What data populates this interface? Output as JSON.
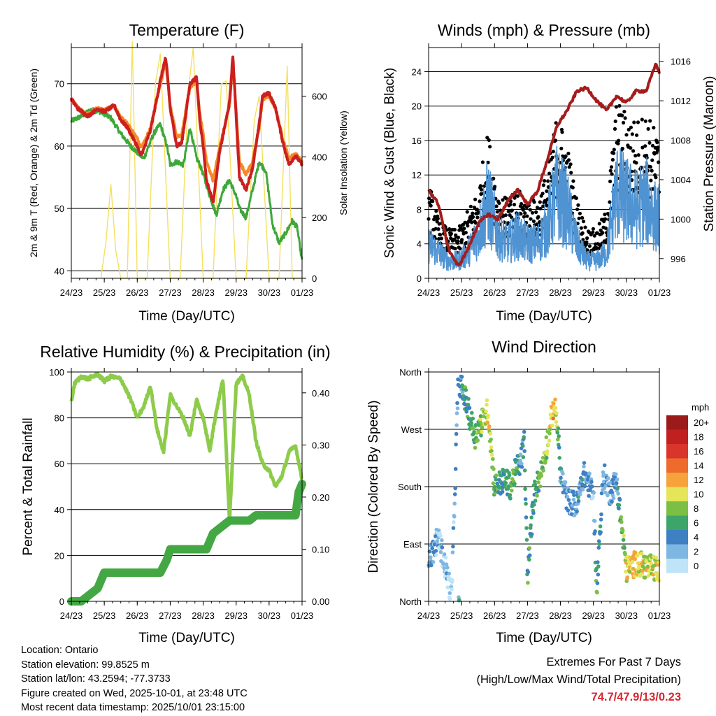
{
  "chart_data": [
    {
      "type": "line",
      "title": "Temperature (F)",
      "xlabel": "Time (Day/UTC)",
      "ylabel": "2m & 9m T (Red, Orange) & 2m Td (Green)",
      "y2label": "Solar Insolation (Yellow)",
      "x_ticks": [
        "24/23",
        "25/23",
        "26/23",
        "27/23",
        "28/23",
        "29/23",
        "30/23",
        "01/23"
      ],
      "ylim": [
        38.8,
        75.8
      ],
      "y_ticks": [
        "40",
        "50",
        "60",
        "70"
      ],
      "y2lim": [
        0,
        760
      ],
      "y2_ticks": [
        "0",
        "200",
        "400",
        "600"
      ],
      "colors": {
        "t2m": "#cc1f1f",
        "t9m": "#f58a2a",
        "td": "#3ea83a",
        "solar": "#f5e05e"
      },
      "series": [
        {
          "name": "2m T",
          "axis": "left",
          "x": [
            0,
            0.2,
            0.5,
            0.8,
            1.0,
            1.3,
            1.5,
            1.7,
            1.9,
            2.0,
            2.1,
            2.2,
            2.4,
            2.7,
            2.85,
            2.9,
            3.0,
            3.2,
            3.35,
            3.6,
            3.8,
            3.9,
            4.0,
            4.1,
            4.3,
            4.5,
            4.8,
            4.9,
            5.0,
            5.1,
            5.3,
            5.5,
            5.7,
            5.8,
            6.0,
            6.2,
            6.4,
            6.6,
            6.8,
            7.0
          ],
          "values": [
            67.5,
            66.0,
            64.8,
            66.0,
            65.5,
            66.5,
            64.2,
            63.0,
            61.0,
            60.0,
            58.5,
            59.5,
            62.5,
            70.5,
            74.0,
            72.5,
            66.0,
            60.0,
            60.5,
            70.0,
            71.0,
            64.0,
            60.0,
            54.5,
            51.0,
            59.0,
            67.0,
            74.5,
            65.0,
            55.0,
            53.0,
            56.5,
            63.5,
            68.0,
            68.5,
            66.0,
            61.0,
            57.0,
            58.5,
            57.0
          ]
        },
        {
          "name": "9m T",
          "axis": "left",
          "x": [
            0,
            0.2,
            0.5,
            0.8,
            1.0,
            1.3,
            1.5,
            1.7,
            1.9,
            2.0,
            2.1,
            2.2,
            2.4,
            2.7,
            2.85,
            2.9,
            3.0,
            3.2,
            3.35,
            3.6,
            3.8,
            3.9,
            4.0,
            4.1,
            4.3,
            4.5,
            4.8,
            4.9,
            5.0,
            5.1,
            5.3,
            5.5,
            5.7,
            5.8,
            6.0,
            6.2,
            6.4,
            6.6,
            6.8,
            7.0
          ],
          "values": [
            67.6,
            66.1,
            65.0,
            66.1,
            65.7,
            66.6,
            64.6,
            63.6,
            62.0,
            61.2,
            60.0,
            60.5,
            62.8,
            70.0,
            73.0,
            71.8,
            66.5,
            61.5,
            61.8,
            69.5,
            70.2,
            65.0,
            62.0,
            57.5,
            54.5,
            59.8,
            66.5,
            73.5,
            65.5,
            57.5,
            55.5,
            57.5,
            63.0,
            67.5,
            68.0,
            66.0,
            61.5,
            58.0,
            58.8,
            57.5
          ]
        },
        {
          "name": "2m Td",
          "axis": "left",
          "x": [
            0,
            0.3,
            0.6,
            0.9,
            1.2,
            1.5,
            1.8,
            2.0,
            2.2,
            2.5,
            2.7,
            2.9,
            3.0,
            3.2,
            3.4,
            3.6,
            3.8,
            3.9,
            4.0,
            4.2,
            4.4,
            4.6,
            4.8,
            5.0,
            5.1,
            5.3,
            5.5,
            5.7,
            5.9,
            6.0,
            6.1,
            6.3,
            6.5,
            6.7,
            6.85,
            7.0
          ],
          "values": [
            64.0,
            64.8,
            65.8,
            65.5,
            64.5,
            62.0,
            60.0,
            59.0,
            58.0,
            62.0,
            63.5,
            60.0,
            57.0,
            57.5,
            57.0,
            63.0,
            58.0,
            57.0,
            55.5,
            52.0,
            49.0,
            53.0,
            54.5,
            52.0,
            50.0,
            48.5,
            53.0,
            57.5,
            56.0,
            52.0,
            47.5,
            44.5,
            46.0,
            48.0,
            47.0,
            41.5
          ]
        },
        {
          "name": "Solar Insolation",
          "axis": "right",
          "x": [
            0.9,
            1.05,
            1.2,
            1.35,
            1.5,
            1.7,
            1.85,
            2.0,
            2.3,
            2.55,
            2.7,
            3.0,
            3.3,
            3.55,
            3.7,
            4.0,
            4.3,
            4.55,
            4.7,
            5.0,
            5.3,
            5.55,
            5.7,
            6.0,
            6.3,
            6.55,
            6.7,
            7.0
          ],
          "values": [
            0,
            120,
            310,
            90,
            0,
            0,
            780,
            0,
            0,
            640,
            740,
            0,
            0,
            620,
            760,
            0,
            0,
            640,
            650,
            0,
            0,
            520,
            600,
            0,
            0,
            700,
            0,
            0
          ]
        }
      ]
    },
    {
      "type": "scatter",
      "title": "Winds (mph) & Pressure (mb)",
      "xlabel": "Time (Day/UTC)",
      "ylabel": "Sonic Wind & Gust (Blue, Black)",
      "y2label": "Station Pressure (Maroon)",
      "x_ticks": [
        "24/23",
        "25/23",
        "26/23",
        "27/23",
        "28/23",
        "29/23",
        "30/23",
        "01/23"
      ],
      "ylim": [
        0,
        26.8
      ],
      "y_ticks": [
        "0",
        "4",
        "8",
        "12",
        "16",
        "20",
        "24"
      ],
      "y2lim": [
        994.0,
        1017.4
      ],
      "y2_ticks": [
        "996",
        "1000",
        "1004",
        "1008",
        "1012",
        "1016"
      ],
      "colors": {
        "wind": "#4f93d2",
        "gust": "#000000",
        "pressure": "#a51c1c"
      },
      "series": [
        {
          "name": "Sonic Wind",
          "axis": "left",
          "x": [
            0,
            0.3,
            0.6,
            0.9,
            1.2,
            1.5,
            1.8,
            2.1,
            2.4,
            2.7,
            3.0,
            3.3,
            3.6,
            3.9,
            4.2,
            4.5,
            4.8,
            5.1,
            5.4,
            5.7,
            6.0,
            6.3,
            6.6,
            6.9,
            7.0
          ],
          "values": [
            4,
            3,
            2,
            2,
            3,
            5,
            9,
            5,
            4,
            5,
            4,
            4,
            6,
            10,
            8,
            4,
            2,
            2,
            3,
            10,
            9,
            8,
            9,
            7,
            7
          ]
        },
        {
          "name": "Gust",
          "axis": "left",
          "x": [
            0,
            0.3,
            0.6,
            0.9,
            1.2,
            1.5,
            1.8,
            2.1,
            2.4,
            2.7,
            3.0,
            3.3,
            3.6,
            3.9,
            4.2,
            4.5,
            4.8,
            5.1,
            5.4,
            5.7,
            6.0,
            6.3,
            6.6,
            6.9,
            7.0
          ],
          "values": [
            10,
            6,
            5,
            5,
            7,
            9,
            15,
            9,
            8,
            9,
            8,
            8,
            11,
            17,
            14,
            8,
            5,
            5,
            7,
            18,
            17,
            16,
            17,
            15,
            14
          ]
        },
        {
          "name": "Station Pressure",
          "axis": "right",
          "x": [
            0,
            0.3,
            0.6,
            0.9,
            1.2,
            1.5,
            1.8,
            2.1,
            2.4,
            2.7,
            3.0,
            3.3,
            3.6,
            3.9,
            4.2,
            4.5,
            4.8,
            5.1,
            5.4,
            5.7,
            6.0,
            6.3,
            6.6,
            6.9,
            7.0
          ],
          "values": [
            1003.0,
            1001.5,
            997.0,
            995.2,
            997.0,
            999.5,
            1000.5,
            1000.0,
            1001.8,
            1003.0,
            1001.5,
            1002.8,
            1006.0,
            1009.5,
            1011.0,
            1013.0,
            1013.3,
            1012.0,
            1011.0,
            1012.5,
            1011.8,
            1013.0,
            1013.0,
            1015.8,
            1014.8
          ]
        }
      ]
    },
    {
      "type": "line",
      "title": "Relative Humidity (%) & Precipitation (in)",
      "xlabel": "Time (Day/UTC)",
      "ylabel": "Percent & Total Rainfall",
      "x_ticks": [
        "24/23",
        "25/23",
        "26/23",
        "27/23",
        "28/23",
        "29/23",
        "30/23",
        "01/23"
      ],
      "ylim": [
        0,
        100
      ],
      "y_ticks": [
        "0",
        "20",
        "40",
        "60",
        "80",
        "100"
      ],
      "y2lim": [
        0,
        0.44
      ],
      "y2_ticks": [
        "0.00",
        "0.10",
        "0.20",
        "0.30",
        "0.40"
      ],
      "colors": {
        "rh": "#8dcb4a",
        "precip": "#43a844"
      },
      "series": [
        {
          "name": "Relative Humidity",
          "axis": "left",
          "x": [
            0,
            0.1,
            0.3,
            0.5,
            0.8,
            1.0,
            1.2,
            1.5,
            1.8,
            2.0,
            2.2,
            2.4,
            2.6,
            2.8,
            3.0,
            3.2,
            3.4,
            3.6,
            3.8,
            4.0,
            4.2,
            4.4,
            4.6,
            4.8,
            5.0,
            5.2,
            5.4,
            5.6,
            5.8,
            6.0,
            6.2,
            6.4,
            6.6,
            6.8,
            7.0
          ],
          "values": [
            87,
            95,
            98,
            97,
            99,
            96,
            98,
            97,
            88,
            80,
            85,
            94,
            75,
            65,
            90,
            85,
            80,
            72,
            88,
            80,
            66,
            83,
            97,
            35,
            95,
            98,
            90,
            70,
            60,
            57,
            50,
            55,
            65,
            68,
            53
          ]
        },
        {
          "name": "Total Rainfall",
          "axis": "right",
          "x": [
            0,
            0.3,
            0.5,
            0.8,
            1.0,
            1.2,
            2.7,
            2.9,
            3.0,
            3.4,
            4.1,
            4.3,
            4.5,
            4.8,
            5.4,
            5.6,
            6.8,
            6.9,
            7.0
          ],
          "values": [
            0.0,
            0.0,
            0.01,
            0.025,
            0.055,
            0.055,
            0.055,
            0.08,
            0.1,
            0.1,
            0.1,
            0.13,
            0.14,
            0.155,
            0.155,
            0.165,
            0.165,
            0.21,
            0.225
          ]
        }
      ]
    },
    {
      "type": "scatter",
      "title": "Wind Direction",
      "xlabel": "Time (Day/UTC)",
      "ylabel": "Direction (Colored By Speed)",
      "x_ticks": [
        "24/23",
        "25/23",
        "26/23",
        "27/23",
        "28/23",
        "29/23",
        "30/23",
        "01/23"
      ],
      "y_ticks": [
        "North",
        "East",
        "South",
        "West",
        "North"
      ],
      "ylim": [
        0,
        360
      ],
      "legend": {
        "title": "mph",
        "labels": [
          "20+",
          "18",
          "16",
          "14",
          "12",
          "10",
          "8",
          "6",
          "4",
          "2",
          "0"
        ],
        "colors": [
          "#9b1b1b",
          "#c0201f",
          "#d9352b",
          "#ef6b2c",
          "#f6a33c",
          "#e6e458",
          "#7bbf44",
          "#3ea56a",
          "#3f80c2",
          "#7fb7e3",
          "#bfe3f7"
        ]
      },
      "series": [
        {
          "name": "Direction",
          "x": [
            0.05,
            0.3,
            0.7,
            0.9,
            1.1,
            1.4,
            1.6,
            1.8,
            2.0,
            2.3,
            2.5,
            2.6,
            2.8,
            2.9,
            3.0,
            3.2,
            3.4,
            3.6,
            3.8,
            3.9,
            4.0,
            4.2,
            4.5,
            4.7,
            4.9,
            5.0,
            5.1,
            5.3,
            5.5,
            5.7,
            6.0,
            6.3,
            6.6,
            6.9
          ],
          "values": [
            70,
            100,
            10,
            350,
            320,
            260,
            280,
            300,
            180,
            190,
            180,
            200,
            220,
            250,
            40,
            170,
            200,
            250,
            310,
            280,
            200,
            160,
            150,
            200,
            180,
            170,
            20,
            200,
            170,
            190,
            50,
            60,
            55,
            50
          ],
          "speeds": [
            3,
            2,
            1,
            4,
            5,
            7,
            8,
            11,
            6,
            5,
            6,
            7,
            3,
            5,
            6,
            5,
            7,
            8,
            12,
            9,
            4,
            2,
            3,
            4,
            3,
            2,
            6,
            3,
            2,
            3,
            10,
            11,
            9,
            10
          ]
        }
      ]
    }
  ],
  "info": {
    "location": "Location: Ontario",
    "elevation": "Station elevation: 99.8525 m",
    "latlon": "Station lat/lon: 43.2594; -77.3733",
    "created": "Figure created on Wed, 2025-10-01, at 23:48 UTC",
    "latest": "Most recent data timestamp: 2025/10/01 23:15:00"
  },
  "extremes": {
    "line1": "Extremes For Past 7 Days",
    "line2": "(High/Low/Max Wind/Total Precipitation)",
    "values": "74.7/47.9/13/0.23"
  }
}
